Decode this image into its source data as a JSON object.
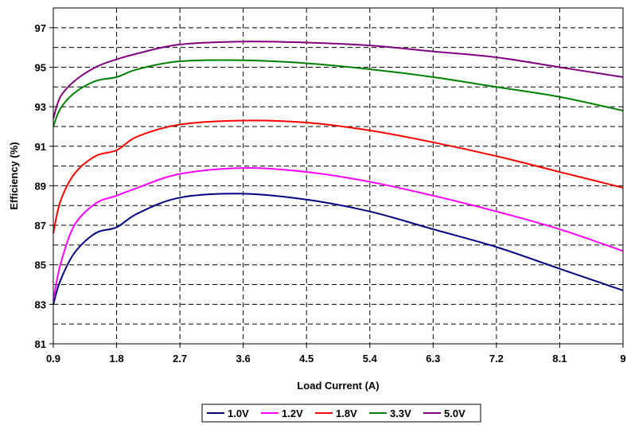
{
  "chart_data": {
    "type": "line",
    "title": "",
    "xlabel": "Load Current (A)",
    "ylabel": "Efficiency (%)",
    "xlim": [
      0.9,
      9
    ],
    "ylim": [
      81,
      98
    ],
    "x_ticks": [
      0.9,
      1.8,
      2.7,
      3.6,
      4.5,
      5.4,
      6.3,
      7.2,
      8.1,
      9
    ],
    "x_tick_labels": [
      "0.9",
      "1.8",
      "2.7",
      "3.6",
      "4.5",
      "5.4",
      "6.3",
      "7.2",
      "8.1",
      "9"
    ],
    "y_ticks": [
      81,
      83,
      85,
      87,
      89,
      91,
      93,
      95,
      97
    ],
    "y_tick_labels": [
      "81",
      "83",
      "85",
      "87",
      "89",
      "91",
      "93",
      "95",
      "97"
    ],
    "y_gridlines": [
      82,
      83,
      84,
      85,
      86,
      87,
      88,
      89,
      90,
      91,
      92,
      93,
      94,
      95,
      96,
      97
    ],
    "grid": true,
    "legend_position": "bottom",
    "series": [
      {
        "name": "1.0V",
        "color": "#000080",
        "x": [
          0.9,
          1.0,
          1.2,
          1.5,
          1.8,
          2.1,
          2.7,
          3.6,
          4.5,
          5.4,
          6.3,
          7.2,
          8.1,
          9.0
        ],
        "y": [
          83.0,
          84.2,
          85.6,
          86.6,
          86.9,
          87.6,
          88.4,
          88.6,
          88.3,
          87.7,
          86.8,
          85.9,
          84.8,
          83.7
        ]
      },
      {
        "name": "1.2V",
        "color": "#FF00FF",
        "x": [
          0.9,
          1.0,
          1.2,
          1.5,
          1.8,
          2.1,
          2.7,
          3.6,
          4.5,
          5.4,
          6.3,
          7.2,
          8.1,
          9.0
        ],
        "y": [
          83.2,
          85.0,
          87.0,
          88.1,
          88.5,
          88.9,
          89.6,
          89.9,
          89.7,
          89.2,
          88.5,
          87.7,
          86.8,
          85.7
        ]
      },
      {
        "name": "1.8V",
        "color": "#FF0000",
        "x": [
          0.9,
          1.0,
          1.2,
          1.5,
          1.8,
          2.1,
          2.7,
          3.6,
          4.5,
          5.4,
          6.3,
          7.2,
          8.1,
          9.0
        ],
        "y": [
          86.6,
          88.2,
          89.6,
          90.5,
          90.8,
          91.5,
          92.1,
          92.3,
          92.2,
          91.8,
          91.2,
          90.5,
          89.7,
          88.9
        ]
      },
      {
        "name": "3.3V",
        "color": "#008000",
        "x": [
          0.9,
          1.0,
          1.2,
          1.5,
          1.8,
          2.1,
          2.7,
          3.6,
          4.5,
          5.4,
          6.3,
          7.2,
          8.1,
          9.0
        ],
        "y": [
          92.0,
          92.9,
          93.7,
          94.3,
          94.5,
          94.9,
          95.3,
          95.35,
          95.2,
          94.9,
          94.5,
          94.0,
          93.5,
          92.8
        ]
      },
      {
        "name": "5.0V",
        "color": "#800080",
        "x": [
          0.9,
          1.0,
          1.2,
          1.5,
          1.8,
          2.1,
          2.7,
          3.6,
          4.5,
          5.4,
          6.3,
          7.2,
          8.1,
          9.0
        ],
        "y": [
          92.4,
          93.5,
          94.3,
          95.0,
          95.4,
          95.7,
          96.15,
          96.3,
          96.25,
          96.1,
          95.8,
          95.5,
          95.0,
          94.5
        ]
      }
    ]
  }
}
